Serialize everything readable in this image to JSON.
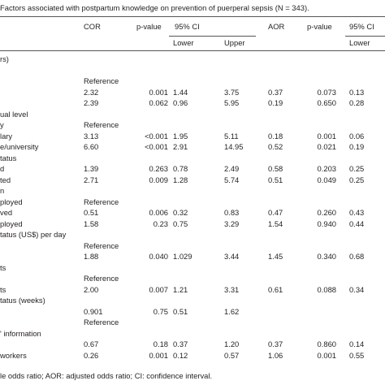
{
  "title": "Factors associated with postpartum knowledge on prevention of puerperal sepsis (N = 343).",
  "header": {
    "columns": [
      "COR",
      "p-value",
      "95% CI",
      "AOR",
      "p-value",
      "95% CI"
    ],
    "subcolumns": [
      "Lower",
      "Upper",
      "Lower"
    ]
  },
  "table": {
    "rows": [
      [
        "rs)",
        null,
        null,
        null,
        null,
        null,
        null,
        null
      ],
      [
        null,
        null,
        null,
        null,
        null,
        null,
        null,
        null
      ],
      [
        null,
        "Reference",
        null,
        null,
        null,
        null,
        null,
        null
      ],
      [
        null,
        "2.32",
        "0.001",
        "1.44",
        "3.75",
        "0.37",
        "0.073",
        "0.13"
      ],
      [
        null,
        "2.39",
        "0.062",
        "0.96",
        "5.95",
        "0.19",
        "0.650",
        "0.28"
      ],
      [
        "ual level",
        null,
        null,
        null,
        null,
        null,
        null,
        null
      ],
      [
        "y",
        "Reference",
        null,
        null,
        null,
        null,
        null,
        null
      ],
      [
        "lary",
        "3.13",
        "<0.001",
        "1.95",
        "5.11",
        "0.18",
        "0.001",
        "0.06"
      ],
      [
        "e/university",
        "6.60",
        "<0.001",
        "2.91",
        "14.95",
        "0.52",
        "0.021",
        "0.19"
      ],
      [
        "tatus",
        null,
        null,
        null,
        null,
        null,
        null,
        null
      ],
      [
        "d",
        "1.39",
        "0.263",
        "0.78",
        "2.49",
        "0.58",
        "0.203",
        "0.25"
      ],
      [
        "ted",
        "2.71",
        "0.009",
        "1.28",
        "5.74",
        "0.51",
        "0.049",
        "0.25"
      ],
      [
        "n",
        null,
        null,
        null,
        null,
        null,
        null,
        null
      ],
      [
        "ployed",
        "Reference",
        null,
        null,
        null,
        null,
        null,
        null
      ],
      [
        "ved",
        "0.51",
        "0.006",
        "0.32",
        "0.83",
        "0.47",
        "0.260",
        "0.43"
      ],
      [
        "ployed",
        "1.58",
        "0.23",
        "0.75",
        "3.29",
        "1.54",
        "0.940",
        "0.44"
      ],
      [
        "tatus (US$) per day",
        null,
        null,
        null,
        null,
        null,
        null,
        null
      ],
      [
        null,
        "Reference",
        null,
        null,
        null,
        null,
        null,
        null
      ],
      [
        null,
        "1.88",
        "0.040",
        "1.029",
        "3.44",
        "1.45",
        "0.340",
        "0.68"
      ],
      [
        "ts",
        null,
        null,
        null,
        null,
        null,
        null,
        null
      ],
      [
        null,
        "Reference",
        null,
        null,
        null,
        null,
        null,
        null
      ],
      [
        "ts",
        "2.00",
        "0.007",
        "1.21",
        "3.31",
        "0.61",
        "0.088",
        "0.34"
      ],
      [
        "tatus (weeks)",
        null,
        null,
        null,
        null,
        null,
        null,
        null
      ],
      [
        null,
        "0.901",
        "0.75",
        "0.51",
        "1.62",
        null,
        null,
        null
      ],
      [
        null,
        "Reference",
        null,
        null,
        null,
        null,
        null,
        null
      ],
      [
        "' information",
        null,
        null,
        null,
        null,
        null,
        null,
        null
      ],
      [
        null,
        "0.67",
        "0.18",
        "0.37",
        "1.20",
        "0.37",
        "0.860",
        "0.14"
      ],
      [
        " workers",
        "0.26",
        "0.001",
        "0.12",
        "0.57",
        "1.06",
        "0.001",
        "0.55"
      ]
    ]
  },
  "footnote": "le odds ratio; AOR: adjusted odds ratio; CI: confidence interval."
}
